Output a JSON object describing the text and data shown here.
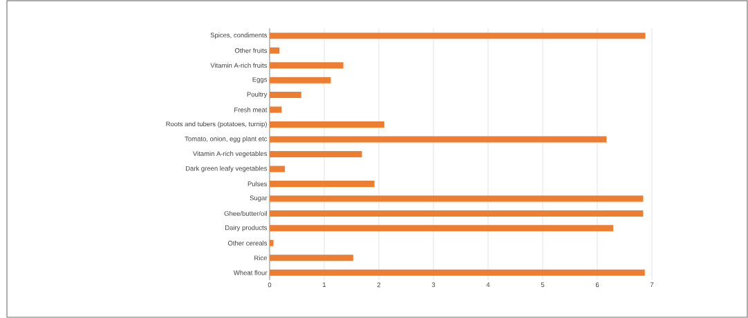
{
  "chart_data": {
    "type": "bar",
    "orientation": "horizontal",
    "color": "#ed7d31",
    "categories": [
      "Spices, condiments",
      "Other fruits",
      "Vitamin A-rich fruits",
      "Eggs",
      "Poultry",
      "Fresh meat",
      "Roots and tubers (potatoes, turnip)",
      "Tomato, onion, egg plant etc",
      "Vitamin A-rich vegetables",
      "Dark green leafy vegetables",
      "Pulses",
      "Sugar",
      "Ghee/butter/oil",
      "Dairy products",
      "Other cereals",
      "Rice",
      "Wheat flour"
    ],
    "values": [
      6.88,
      0.18,
      1.35,
      1.12,
      0.58,
      0.22,
      2.1,
      6.17,
      1.69,
      0.28,
      1.92,
      6.84,
      6.84,
      6.29,
      0.07,
      1.53,
      6.87
    ],
    "xlim": [
      0,
      7
    ],
    "xticks": [
      0,
      1,
      2,
      3,
      4,
      5,
      6,
      7
    ],
    "grid": "x"
  }
}
